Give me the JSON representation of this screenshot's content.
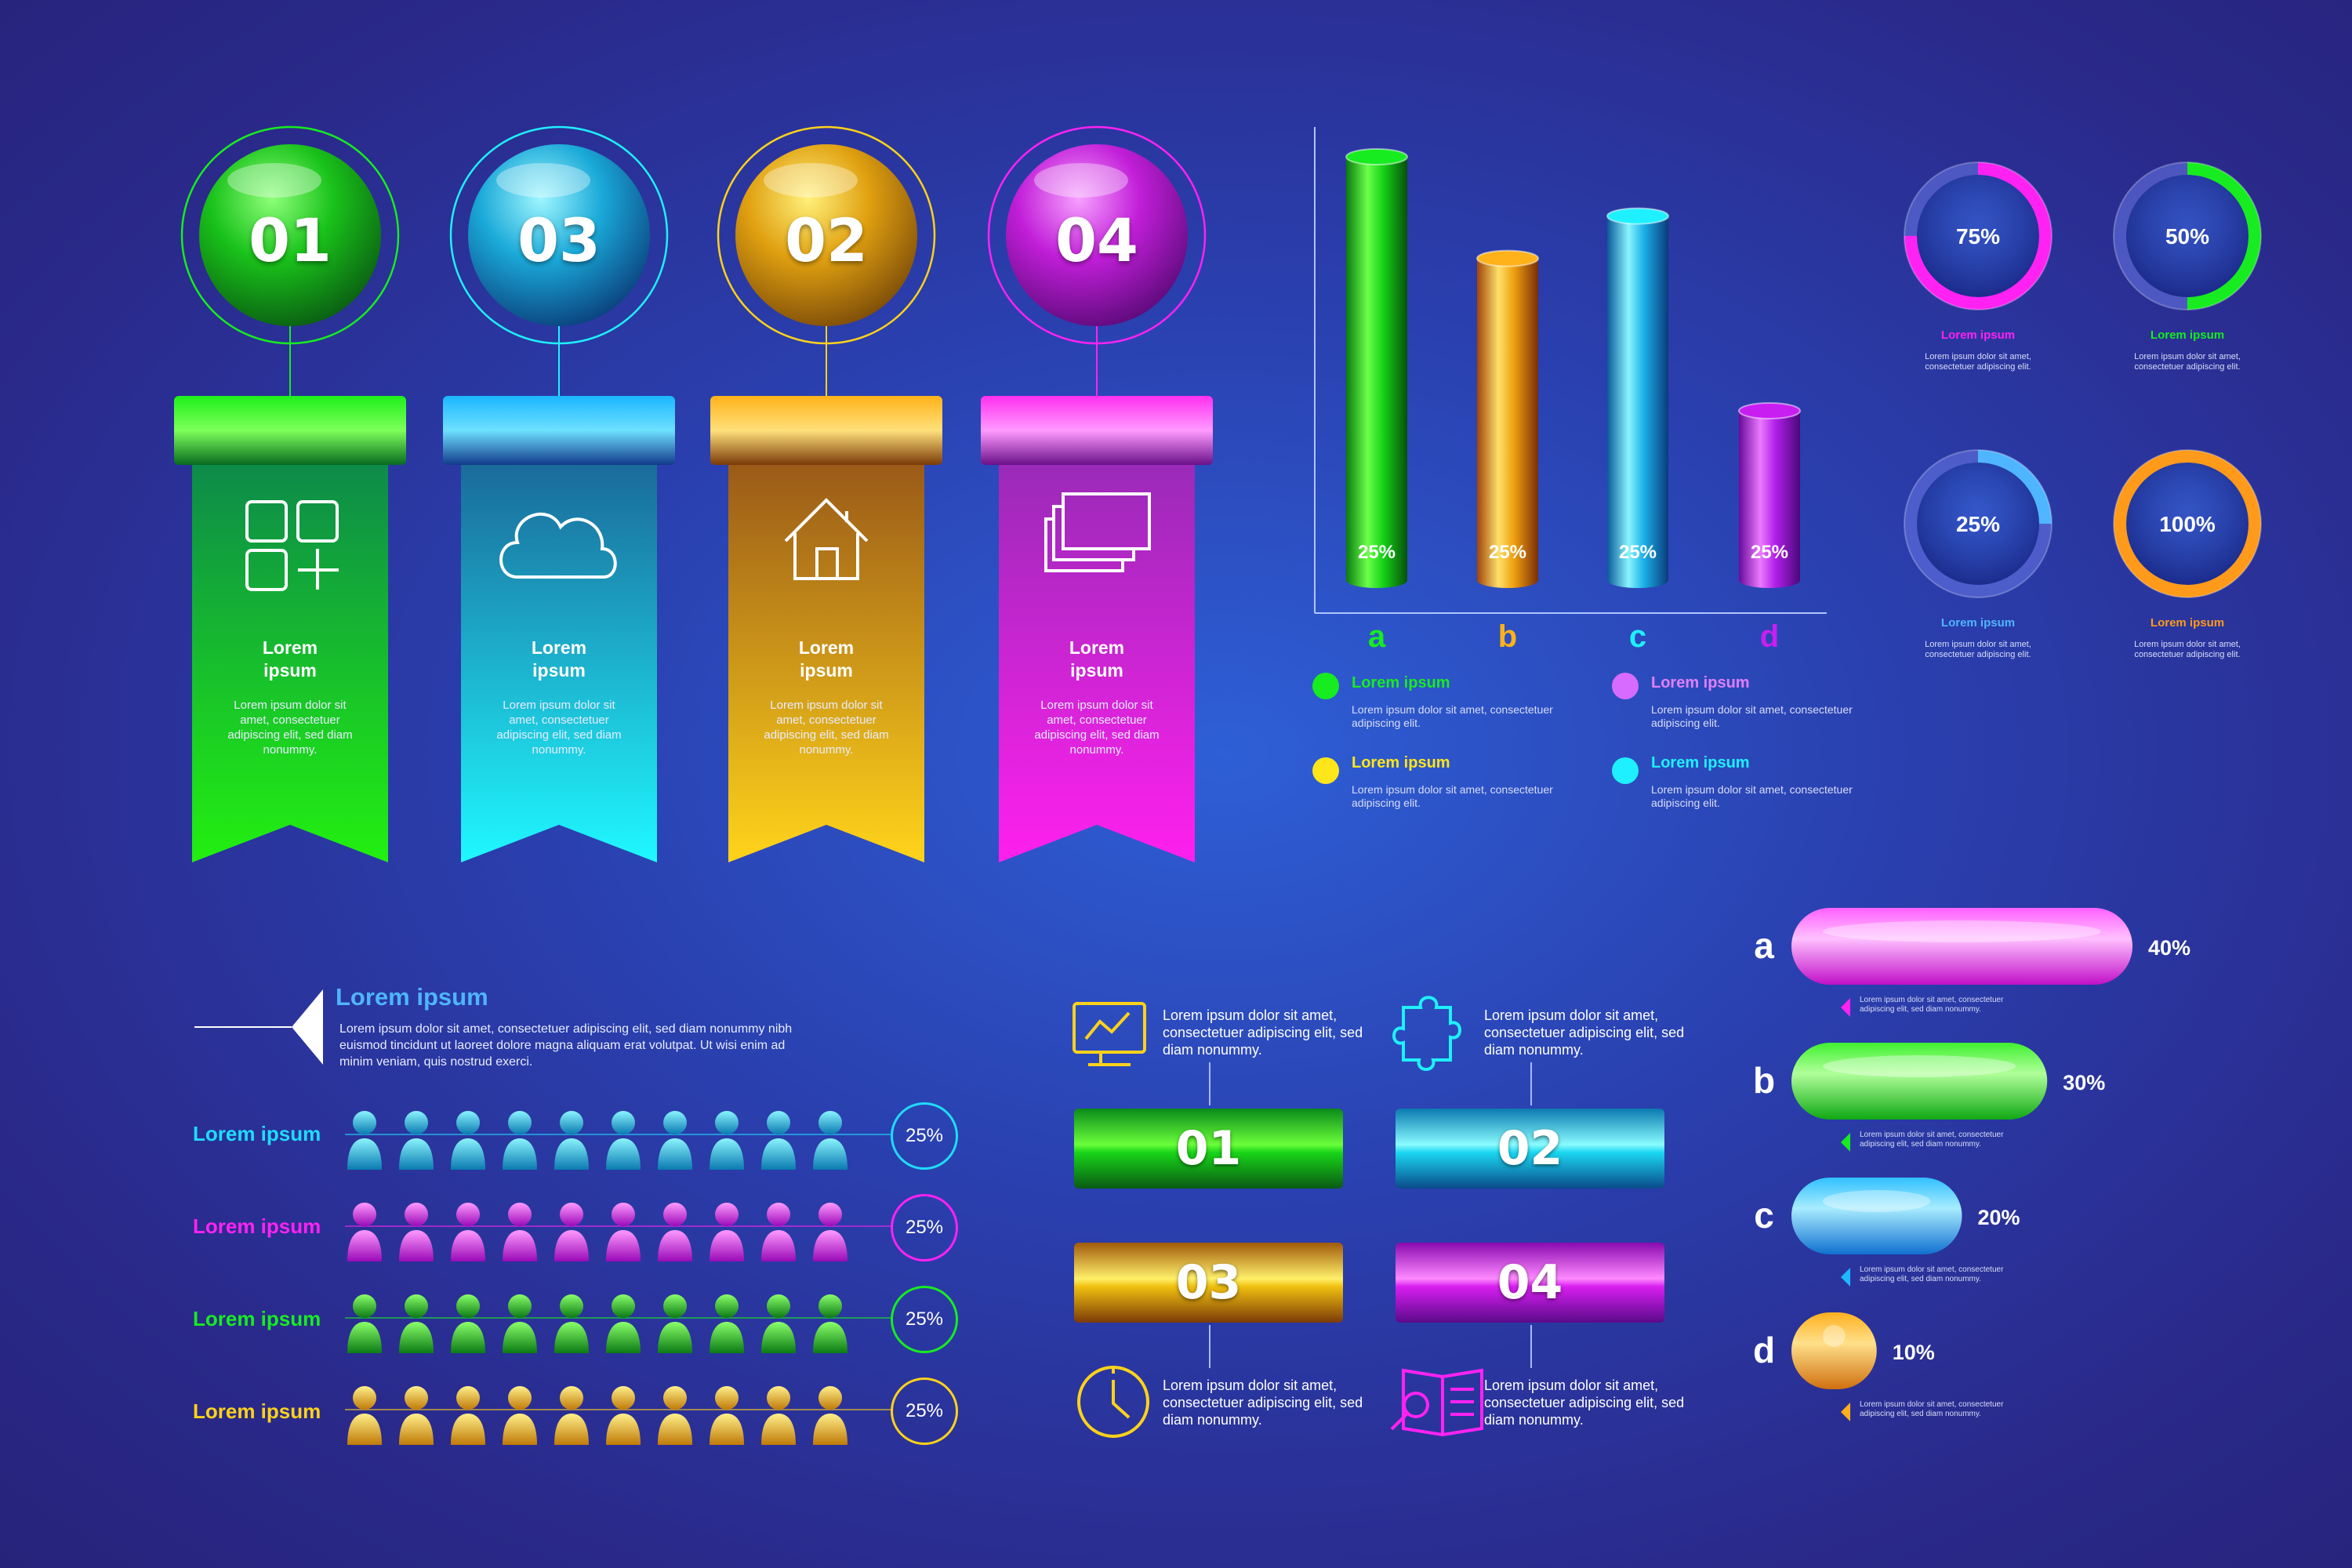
{
  "colors": {
    "green": "#17ec20",
    "cyan": "#1ff0ff",
    "gold": "#ffd21a",
    "magenta": "#ff22f2",
    "lightblue": "#4fb5ff",
    "background": "#2b3aa8"
  },
  "ribbons": [
    {
      "number": "01",
      "title": "Lorem ipsum",
      "text": "Lorem ipsum dolor sit amet, consectetuer adipiscing elit, sed diam nonummy.",
      "icon": "grid-plus-icon",
      "color": "#17ec20"
    },
    {
      "number": "03",
      "title": "Lorem ipsum",
      "text": "Lorem ipsum dolor sit amet, consectetuer adipiscing elit, sed diam nonummy.",
      "icon": "cloud-icon",
      "color": "#1ff0ff"
    },
    {
      "number": "02",
      "title": "Lorem ipsum",
      "text": "Lorem ipsum dolor sit amet, consectetuer adipiscing elit, sed diam nonummy.",
      "icon": "house-icon",
      "color": "#ffd21a"
    },
    {
      "number": "04",
      "title": "Lorem ipsum",
      "text": "Lorem ipsum dolor sit amet, consectetuer adipiscing elit, sed diam nonummy.",
      "icon": "layers-icon",
      "color": "#ff22f2"
    }
  ],
  "chart_data": [
    {
      "type": "bar",
      "categories": [
        "a",
        "b",
        "c",
        "d"
      ],
      "values": [
        100,
        76,
        86,
        40
      ],
      "bar_labels": [
        "25%",
        "25%",
        "25%",
        "25%"
      ],
      "colors": [
        "#17ec20",
        "#ffb21a",
        "#1ff0ff",
        "#c81ef2"
      ]
    },
    {
      "type": "pie",
      "values": [
        75,
        50,
        25,
        100
      ],
      "labels": [
        "75%",
        "50%",
        "25%",
        "100%"
      ],
      "captions": [
        "Lorem ipsum",
        "Lorem ipsum",
        "Lorem ipsum",
        "Lorem ipsum"
      ],
      "colors": [
        "#ff22f2",
        "#17ec20",
        "#4fb5ff",
        "#ff9a1a"
      ]
    },
    {
      "type": "bar",
      "categories": [
        "a",
        "b",
        "c",
        "d"
      ],
      "values": [
        40,
        30,
        20,
        10
      ],
      "labels": [
        "40%",
        "30%",
        "20%",
        "10%"
      ],
      "colors": [
        "#ff22f2",
        "#17ec20",
        "#1fb8ff",
        "#ffb01a"
      ]
    }
  ],
  "bar_legend": [
    {
      "title": "Lorem ipsum",
      "text": "Lorem ipsum dolor sit amet, consectetuer adipiscing elit.",
      "color": "#17ec20"
    },
    {
      "title": "Lorem ipsum",
      "text": "Lorem ipsum dolor sit amet, consectetuer adipiscing elit.",
      "color": "#d86bff"
    },
    {
      "title": "Lorem ipsum",
      "text": "Lorem ipsum dolor sit amet, consectetuer adipiscing elit.",
      "color": "#ffe61a"
    },
    {
      "title": "Lorem ipsum",
      "text": "Lorem ipsum dolor sit amet, consectetuer adipiscing elit.",
      "color": "#1ff0ff"
    }
  ],
  "ring_text": "Lorem ipsum dolor sit amet, consectetuer adipiscing elit.",
  "pill_note": "Lorem ipsum dolor sit amet, consectetuer adipiscing elit, sed diam nonummy.",
  "people": {
    "header_title": "Lorem ipsum",
    "header_text": "Lorem ipsum dolor sit amet, consectetuer adipiscing elit, sed diam nonummy nibh euismod tincidunt ut laoreet dolore magna aliquam erat volutpat. Ut wisi enim ad minim veniam, quis nostrud exerci.",
    "rows": [
      {
        "label": "Lorem ipsum",
        "percent": "25%",
        "color": "#1fdcff"
      },
      {
        "label": "Lorem ipsum",
        "percent": "25%",
        "color": "#ff22f2"
      },
      {
        "label": "Lorem ipsum",
        "percent": "25%",
        "color": "#17ec20"
      },
      {
        "label": "Lorem ipsum",
        "percent": "25%",
        "color": "#ffd21a"
      }
    ]
  },
  "steps": [
    {
      "number": "01",
      "text": "Lorem ipsum dolor sit amet, consectetuer adipiscing elit, sed diam nonummy.",
      "icon": "monitor-chart-icon",
      "color": "#17ec20"
    },
    {
      "number": "02",
      "text": "Lorem ipsum dolor sit amet, consectetuer adipiscing elit, sed diam nonummy.",
      "icon": "puzzle-icon",
      "color": "#1ff0ff"
    },
    {
      "number": "03",
      "text": "Lorem ipsum dolor sit amet, consectetuer adipiscing elit, sed diam nonummy.",
      "icon": "clock-icon",
      "color": "#ffd21a"
    },
    {
      "number": "04",
      "text": "Lorem ipsum dolor sit amet, consectetuer adipiscing elit, sed diam nonummy.",
      "icon": "document-search-icon",
      "color": "#ff22f2"
    }
  ]
}
